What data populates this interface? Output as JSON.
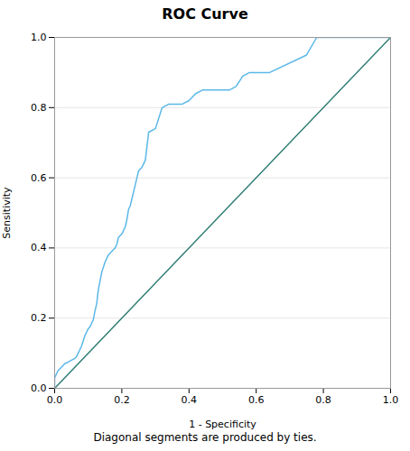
{
  "chart_data": {
    "type": "line",
    "title": "ROC Curve",
    "xlabel": "1 - Specificity",
    "ylabel": "Sensitivity",
    "annotations": [
      "Diagonal segments are produced by ties."
    ],
    "xlim": [
      0.0,
      1.0
    ],
    "ylim": [
      0.0,
      1.0
    ],
    "xticks": [
      {
        "value": 0.0,
        "label": "0.0"
      },
      0.2,
      0.4,
      0.6,
      0.8,
      {
        "value": 1.0,
        "label": "1.0"
      }
    ],
    "yticks": [
      {
        "value": 0.0,
        "label": "0.0"
      },
      0.2,
      0.4,
      0.6,
      0.8,
      {
        "value": 1.0,
        "label": "1.0"
      }
    ],
    "grid": "y",
    "series": [
      {
        "color": "#2E7D72",
        "x": [
          0,
          1
        ],
        "values": [
          0,
          1
        ]
      },
      {
        "color": "#5BB8E8",
        "x": [
          0.0,
          0.0,
          0.01,
          0.02,
          0.03,
          0.04,
          0.05,
          0.06,
          0.065,
          0.07,
          0.075,
          0.08,
          0.09,
          0.095,
          0.1,
          0.105,
          0.11,
          0.115,
          0.12,
          0.125,
          0.13,
          0.14,
          0.15,
          0.16,
          0.17,
          0.175,
          0.18,
          0.185,
          0.19,
          0.2,
          0.21,
          0.215,
          0.22,
          0.225,
          0.24,
          0.25,
          0.26,
          0.27,
          0.28,
          0.3,
          0.32,
          0.34,
          0.36,
          0.38,
          0.4,
          0.42,
          0.44,
          0.46,
          0.5,
          0.52,
          0.54,
          0.56,
          0.58,
          0.6,
          0.62,
          0.64,
          0.75,
          0.78,
          0.9,
          1.0
        ],
        "values": [
          0.0,
          0.03,
          0.05,
          0.06,
          0.07,
          0.075,
          0.08,
          0.085,
          0.09,
          0.1,
          0.11,
          0.12,
          0.15,
          0.16,
          0.17,
          0.175,
          0.185,
          0.195,
          0.22,
          0.24,
          0.28,
          0.33,
          0.36,
          0.38,
          0.39,
          0.395,
          0.4,
          0.41,
          0.43,
          0.44,
          0.46,
          0.48,
          0.51,
          0.52,
          0.58,
          0.62,
          0.63,
          0.65,
          0.73,
          0.74,
          0.8,
          0.81,
          0.81,
          0.81,
          0.82,
          0.84,
          0.85,
          0.85,
          0.85,
          0.85,
          0.86,
          0.89,
          0.9,
          0.9,
          0.9,
          0.9,
          0.95,
          1.0,
          1.0,
          1.0
        ]
      }
    ]
  }
}
